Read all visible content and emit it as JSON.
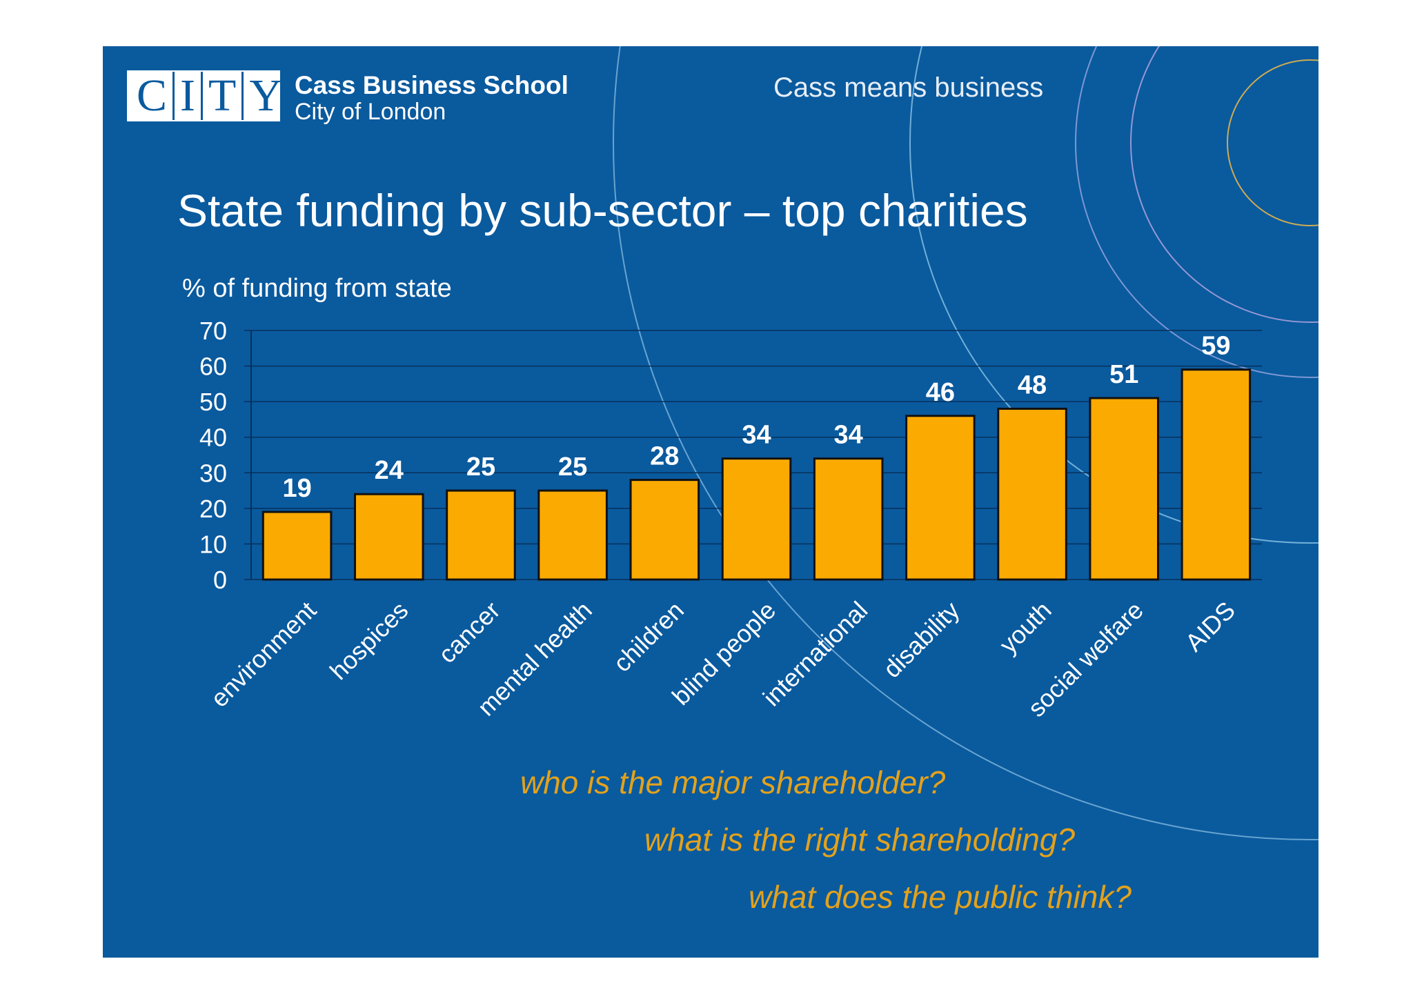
{
  "header": {
    "logo_letters": [
      "C",
      "I",
      "T",
      "Y"
    ],
    "school_name": "Cass Business School",
    "school_sub": "City of London",
    "tagline": "Cass means business"
  },
  "colors": {
    "background": "#0a5a9e",
    "bar_fill": "#fbaa02",
    "question_text": "#e3a21c"
  },
  "chart_data": {
    "type": "bar",
    "title": "State funding by sub-sector – top charities",
    "ylabel": "% of funding from state",
    "xlabel": "",
    "ylim": [
      0,
      70
    ],
    "yticks": [
      0,
      10,
      20,
      30,
      40,
      50,
      60,
      70
    ],
    "grid": true,
    "categories": [
      "environment",
      "hospices",
      "cancer",
      "mental health",
      "children",
      "blind people",
      "international",
      "disability",
      "youth",
      "social welfare",
      "AIDS"
    ],
    "values": [
      19,
      24,
      25,
      25,
      28,
      34,
      34,
      46,
      48,
      51,
      59
    ],
    "data_labels": [
      "19",
      "24",
      "25",
      "25",
      "28",
      "34",
      "34",
      "46",
      "48",
      "51",
      "59"
    ]
  },
  "questions": [
    "who is the major shareholder?",
    "what is the right shareholding?",
    "what does the public think?"
  ]
}
